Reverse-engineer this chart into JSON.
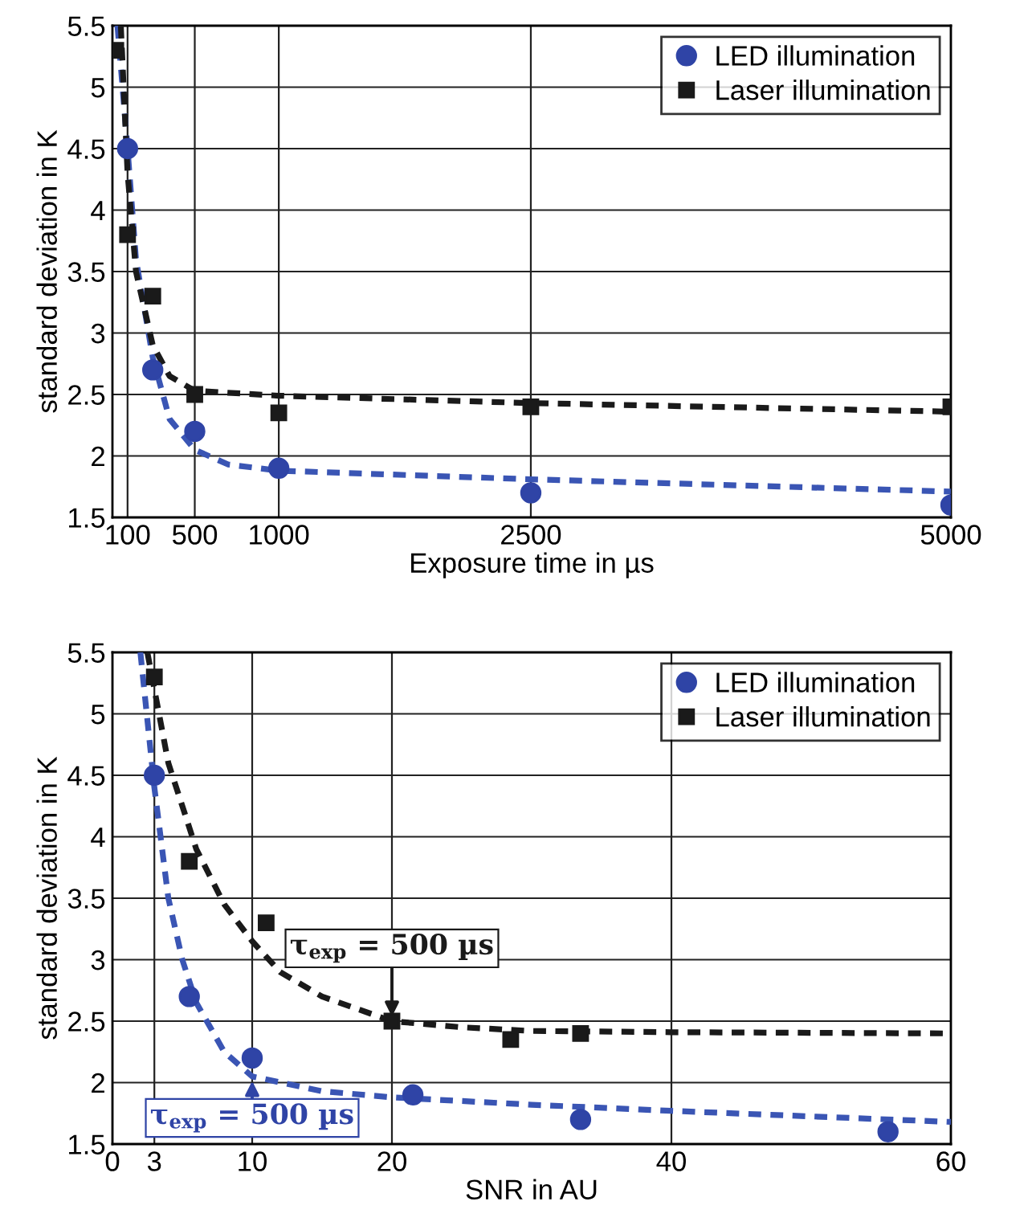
{
  "chart_data": [
    {
      "type": "scatter",
      "xlabel": "Exposure time in µs",
      "ylabel": "standard deviation in K",
      "xlim": [
        10,
        5000
      ],
      "xticks": [
        100,
        500,
        1000,
        2500,
        5000
      ],
      "ylim": [
        1.5,
        5.5
      ],
      "yticks": [
        1.5,
        2,
        2.5,
        3,
        3.5,
        4,
        4.5,
        5,
        5.5
      ],
      "grid": true,
      "legend": "top right",
      "series": [
        {
          "name": "LED illumination",
          "color": "#2f44a6",
          "marker": "circle",
          "x": [
            100,
            250,
            500,
            1000,
            2500,
            5000
          ],
          "values": [
            4.5,
            2.7,
            2.2,
            1.9,
            1.7,
            1.6
          ]
        },
        {
          "name": "Laser illumination",
          "color": "#1a1a1a",
          "marker": "square",
          "x": [
            30,
            100,
            250,
            500,
            1000,
            2500,
            5000
          ],
          "values": [
            5.3,
            3.8,
            3.3,
            2.5,
            2.35,
            2.4,
            2.4
          ]
        },
        {
          "type": "line",
          "color": "#3a55b4",
          "line_style": "dashed",
          "x": [
            40,
            100,
            150,
            250,
            350,
            500,
            700,
            1000,
            2500,
            5000
          ],
          "values": [
            5.5,
            4.5,
            3.6,
            2.8,
            2.3,
            2.05,
            1.93,
            1.88,
            1.81,
            1.71
          ]
        },
        {
          "type": "line",
          "color": "#1a1a1a",
          "line_style": "dashed",
          "x": [
            60,
            100,
            150,
            250,
            350,
            500,
            1000,
            2500,
            5000
          ],
          "values": [
            5.5,
            4.3,
            3.5,
            2.9,
            2.65,
            2.53,
            2.49,
            2.43,
            2.36
          ]
        }
      ]
    },
    {
      "type": "scatter",
      "xlabel": "SNR in AU",
      "ylabel": "standard deviation in K",
      "xlim": [
        0,
        60
      ],
      "xticks": [
        0,
        3,
        10,
        20,
        40,
        60
      ],
      "ylim": [
        1.5,
        5.5
      ],
      "yticks": [
        1.5,
        2,
        2.5,
        3,
        3.5,
        4,
        4.5,
        5,
        5.5
      ],
      "grid": true,
      "legend": "top right",
      "annotations": [
        {
          "text": "τ$_{exp}$ = 500 µs",
          "x": 20,
          "y": 2.5
        },
        {
          "text": "τ$_{exp}$ = 500 µs",
          "x": 10,
          "y": 2.05
        }
      ],
      "series": [
        {
          "name": "LED illumination",
          "color": "#2f44a6",
          "marker": "circle",
          "x": [
            3,
            5.5,
            10,
            21.5,
            33.5,
            55.5
          ],
          "values": [
            4.5,
            2.7,
            2.2,
            1.9,
            1.7,
            1.6
          ]
        },
        {
          "name": "Laser illumination",
          "color": "#1a1a1a",
          "marker": "square",
          "x": [
            3,
            5.5,
            11,
            20,
            28.5,
            33.5
          ],
          "values": [
            5.3,
            3.8,
            3.3,
            2.5,
            2.35,
            2.4
          ]
        },
        {
          "type": "line",
          "color": "#3a55b4",
          "line_style": "dashed",
          "x": [
            2,
            3,
            4,
            5,
            6,
            8,
            10,
            15,
            20,
            30,
            40,
            60
          ],
          "values": [
            5.5,
            4.4,
            3.5,
            3.0,
            2.65,
            2.25,
            2.05,
            1.93,
            1.88,
            1.82,
            1.77,
            1.68
          ]
        },
        {
          "type": "line",
          "color": "#1a1a1a",
          "line_style": "dashed",
          "x": [
            2.5,
            4,
            6,
            8,
            10,
            12,
            15,
            20,
            25,
            30,
            40,
            60
          ],
          "values": [
            5.5,
            4.6,
            3.9,
            3.45,
            3.15,
            2.9,
            2.7,
            2.5,
            2.45,
            2.42,
            2.41,
            2.4
          ]
        }
      ]
    }
  ]
}
